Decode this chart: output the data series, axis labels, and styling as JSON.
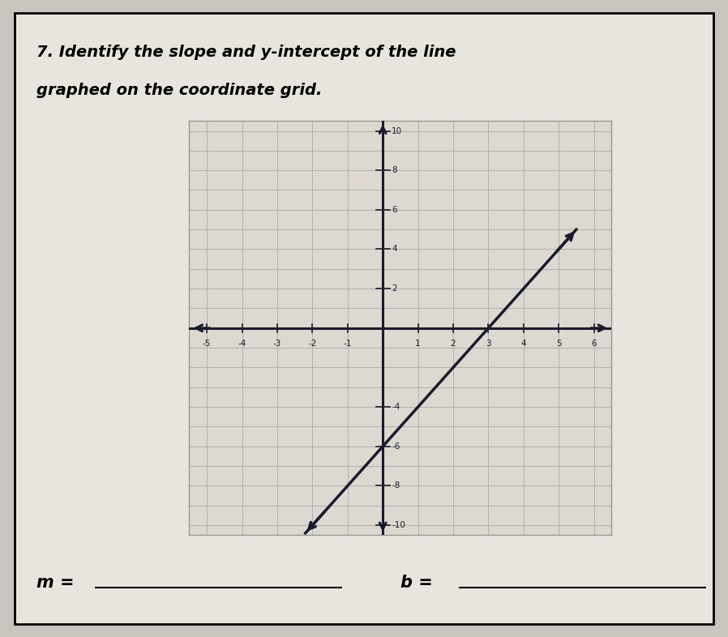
{
  "title_line1": "7. Identify the slope and y-intercept of the line",
  "title_line2": "graphed on the coordinate grid.",
  "slope": 2,
  "y_intercept": -6,
  "x_line_start": -2.2,
  "x_line_end": 5.5,
  "xlim": [
    -5.5,
    6.5
  ],
  "ylim": [
    -10.5,
    10.5
  ],
  "grid_color": "#b0b0b0",
  "axis_color": "#1a1a2e",
  "line_color": "#1a1a2e",
  "bg_color": "#c8c5be",
  "paper_color": "#e8e5de",
  "graph_bg": "#ddd9d0",
  "label_m": "m = ",
  "label_b": "b = ",
  "xlabel_ticks": [
    -5,
    -4,
    -3,
    -2,
    -1,
    1,
    2,
    3,
    4,
    5,
    6
  ],
  "ylabel_ticks_pos": [
    2,
    4,
    6,
    8,
    10
  ],
  "ylabel_ticks_neg": [
    -4,
    -6,
    -8,
    -10
  ],
  "title_fontsize": 14,
  "label_fontsize": 15
}
